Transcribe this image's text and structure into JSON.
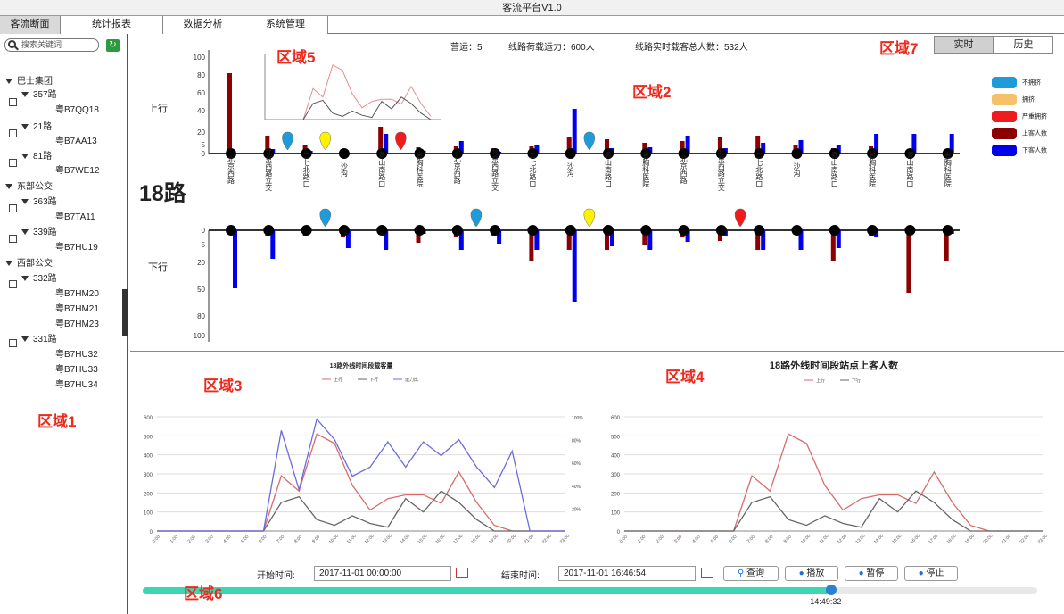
{
  "window": {
    "title": "客流平台V1.0"
  },
  "menu": {
    "tabs": [
      "客流断面",
      "统计报表",
      "数据分析",
      "系统管理"
    ]
  },
  "sidebar": {
    "search_placeholder": "搜索关键词",
    "groups": [
      {
        "label": "巴士集团",
        "routes": [
          {
            "label": "357路",
            "buses": [
              "粤B7QQ18"
            ]
          },
          {
            "label": "21路",
            "buses": [
              "粤B7AA13"
            ]
          },
          {
            "label": "81路",
            "buses": [
              "粤B7WE12"
            ]
          }
        ]
      },
      {
        "label": "东部公交",
        "routes": [
          {
            "label": "363路",
            "buses": [
              "粤B7TA11"
            ]
          },
          {
            "label": "339路",
            "buses": [
              "粤B7HU19"
            ]
          }
        ]
      },
      {
        "label": "西部公交",
        "routes": [
          {
            "label": "332路",
            "buses": [
              "粤B7HM20",
              "粤B7HM21",
              "粤B7HM23"
            ]
          },
          {
            "label": "331路",
            "buses": [
              "粤B7HU32",
              "粤B7HU33",
              "粤B7HU34"
            ]
          }
        ]
      }
    ]
  },
  "zones": {
    "z1": "区域1",
    "z2": "区域2",
    "z3": "区域3",
    "z4": "区域4",
    "z5": "区域5",
    "z6": "区域6",
    "z7": "区域7"
  },
  "main": {
    "route_name": "18路",
    "stats": {
      "on_duty": "营运：5",
      "capacity": "线路荷载运力：600人",
      "realtime": "线路实时载客总人数：532人"
    },
    "toggle": {
      "realtime": "实时",
      "history": "历史"
    },
    "direction_up": "上行",
    "direction_down": "下行",
    "legend": [
      {
        "label": "不拥挤",
        "color": "#1e9bd8"
      },
      {
        "label": "拥挤",
        "color": "#f5c26b"
      },
      {
        "label": "严重拥挤",
        "color": "#ee1c1c"
      },
      {
        "label": "上客人数",
        "color": "#8b0000"
      },
      {
        "label": "下客人数",
        "color": "#0000ee"
      }
    ],
    "stations_top": [
      "北京西路",
      "北京西路立交",
      "二七北路口",
      "沙沟",
      "青山南路口",
      "省胸科医院",
      "北京西路",
      "北京西路立交",
      "二七北路口",
      "沙沟",
      "青山南路口",
      "省胸科医院",
      "北京西路",
      "北京西路立交",
      "二七北路口",
      "沙沟",
      "青山南路口",
      "省胸科医院",
      "青山南路口",
      "省胸科医院"
    ],
    "stations_bottom": [
      "北京西路",
      "北京西路立交",
      "二七北路口",
      "沙沟",
      "青山南路口",
      "省胸科医院",
      "北京西路",
      "北京西路立交",
      "二七北路口",
      "沙沟",
      "青山南路口",
      "省胸科医院",
      "北京西路",
      "北京西路立交",
      "二七北路口",
      "沙沟",
      "青山南路口",
      "省胸科医院",
      "青山南路口",
      "省胸科医院"
    ],
    "y_ticks_up": [
      "100",
      "80",
      "60",
      "40",
      "20",
      "5",
      "0"
    ],
    "y_ticks_down": [
      "0",
      "5",
      "20",
      "50",
      "80",
      "100"
    ]
  },
  "chart_data": [
    {
      "type": "bar",
      "title": "上行",
      "ylim": [
        0,
        100
      ],
      "categories": [
        "北京西路",
        "北京西路立交",
        "二七北路口",
        "沙沟",
        "青山南路口",
        "省胸科医院",
        "北京西路",
        "北京西路立交",
        "二七北路口",
        "沙沟",
        "青山南路口",
        "省胸科医院",
        "北京西路",
        "北京西路立交",
        "二七北路口",
        "沙沟",
        "青山南路口",
        "省胸科医院",
        "青山南路口",
        "省胸科医院"
      ],
      "series": [
        {
          "name": "上客人数",
          "values": [
            90,
            20,
            10,
            5,
            30,
            7,
            8,
            6,
            8,
            18,
            16,
            12,
            14,
            18,
            20,
            9,
            6,
            8,
            2,
            2
          ]
        },
        {
          "name": "下客人数",
          "values": [
            0,
            5,
            3,
            0,
            22,
            3,
            14,
            2,
            9,
            50,
            6,
            7,
            20,
            6,
            12,
            15,
            10,
            22,
            22,
            22
          ]
        }
      ],
      "markers": [
        {
          "after": 1,
          "color": "#1e9bd8"
        },
        {
          "after": 2,
          "color": "#fff200"
        },
        {
          "after": 4,
          "color": "#ee1c1c"
        },
        {
          "after": 9,
          "color": "#1e9bd8"
        }
      ]
    },
    {
      "type": "bar",
      "title": "下行",
      "ylim": [
        0,
        100
      ],
      "categories": [
        "北京西路",
        "北京西路立交",
        "二七北路口",
        "沙沟",
        "青山南路口",
        "省胸科医院",
        "北京西路",
        "北京西路立交",
        "二七北路口",
        "沙沟",
        "青山南路口",
        "省胸科医院",
        "北京西路",
        "北京西路立交",
        "二七北路口",
        "沙沟",
        "青山南路口",
        "省胸科医院",
        "青山南路口",
        "省胸科医院"
      ],
      "series": [
        {
          "name": "上客人数",
          "values": [
            0,
            6,
            6,
            8,
            5,
            14,
            8,
            6,
            34,
            22,
            22,
            17,
            8,
            12,
            22,
            5,
            34,
            6,
            70,
            34
          ]
        },
        {
          "name": "下客人数",
          "values": [
            65,
            32,
            0,
            20,
            22,
            4,
            22,
            15,
            22,
            80,
            18,
            22,
            13,
            6,
            22,
            22,
            20,
            8,
            0,
            4
          ]
        }
      ],
      "markers": [
        {
          "after": 2,
          "color": "#1e9bd8"
        },
        {
          "after": 6,
          "color": "#1e9bd8"
        },
        {
          "after": 9,
          "color": "#fff200"
        },
        {
          "after": 13,
          "color": "#ee1c1c"
        }
      ]
    },
    {
      "type": "line",
      "title": "18路外线时间段载客量",
      "ylim": [
        0,
        600
      ],
      "x": [
        "0:00",
        "1:00",
        "2:00",
        "3:00",
        "4:00",
        "5:00",
        "6:00",
        "7:00",
        "8:00",
        "9:00",
        "10:00",
        "11:00",
        "12:00",
        "13:00",
        "14:00",
        "15:00",
        "16:00",
        "17:00",
        "18:00",
        "19:00",
        "20:00",
        "21:00",
        "22:00",
        "23:00"
      ],
      "series": [
        {
          "name": "上行",
          "values": [
            0,
            0,
            0,
            0,
            0,
            0,
            0,
            290,
            210,
            510,
            460,
            240,
            110,
            170,
            190,
            190,
            145,
            310,
            150,
            30,
            0,
            0,
            0,
            0
          ]
        },
        {
          "name": "下行",
          "values": [
            0,
            0,
            0,
            0,
            0,
            0,
            0,
            150,
            180,
            60,
            30,
            80,
            40,
            20,
            170,
            100,
            210,
            150,
            60,
            0,
            0,
            0,
            0,
            0
          ]
        },
        {
          "name": "运力比",
          "values": [
            0,
            0,
            0,
            0,
            0,
            0,
            0,
            88,
            36,
            98,
            80,
            48,
            56,
            78,
            56,
            78,
            66,
            80,
            56,
            38,
            70,
            0,
            0,
            0
          ]
        }
      ]
    },
    {
      "type": "line",
      "title": "18路外线时间段站点上客人数",
      "ylim": [
        0,
        600
      ],
      "x": [
        "0:00",
        "1:00",
        "2:00",
        "3:00",
        "4:00",
        "5:00",
        "6:00",
        "7:00",
        "8:00",
        "9:00",
        "10:00",
        "11:00",
        "12:00",
        "13:00",
        "14:00",
        "15:00",
        "16:00",
        "17:00",
        "18:00",
        "19:00",
        "20:00",
        "21:00",
        "22:00",
        "23:00"
      ],
      "series": [
        {
          "name": "上行",
          "values": [
            0,
            0,
            0,
            0,
            0,
            0,
            0,
            290,
            210,
            510,
            460,
            240,
            110,
            170,
            190,
            190,
            145,
            310,
            150,
            30,
            0,
            0,
            0,
            0
          ]
        },
        {
          "name": "下行",
          "values": [
            0,
            0,
            0,
            0,
            0,
            0,
            0,
            150,
            180,
            60,
            30,
            80,
            40,
            20,
            170,
            100,
            210,
            150,
            60,
            0,
            0,
            0,
            0,
            0
          ]
        }
      ]
    }
  ],
  "controls": {
    "start_label": "开始时间:",
    "start_value": "2017-11-01 00:00:00",
    "end_label": "结束时间:",
    "end_value": "2017-11-01 16:46:54",
    "query": "查询",
    "play": "播放",
    "pause": "暂停",
    "stop": "停止",
    "progress": 0.77,
    "progress_time": "14:49:32"
  }
}
